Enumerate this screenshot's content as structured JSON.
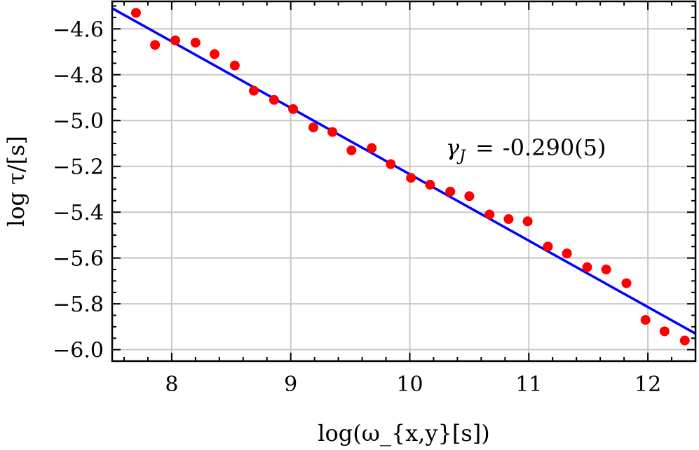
{
  "chart_data": {
    "type": "scatter",
    "xlabel": "log(ω_{x,y}[s])",
    "ylabel": "log τ/[s]",
    "xlim": [
      7.5,
      12.4
    ],
    "ylim": [
      -6.05,
      -4.48
    ],
    "grid": true,
    "x_ticks": [
      8,
      9,
      10,
      11,
      12
    ],
    "y_ticks": [
      -4.6,
      -4.8,
      -5.0,
      -5.2,
      -5.4,
      -5.6,
      -5.8,
      -6.0
    ],
    "x_tick_labels": [
      "8",
      "9",
      "10",
      "11",
      "12"
    ],
    "y_tick_labels": [
      "−4.6",
      "−4.8",
      "−5.0",
      "−5.2",
      "−5.4",
      "−5.6",
      "−5.8",
      "−6.0"
    ],
    "annotation": {
      "text": "-0.290(5)",
      "symbol": "γ",
      "subscript": "J",
      "equals": "="
    },
    "points": {
      "color": "#ff0000",
      "x": [
        7.7,
        7.86,
        8.03,
        8.2,
        8.36,
        8.53,
        8.69,
        8.86,
        9.02,
        9.19,
        9.35,
        9.51,
        9.68,
        9.84,
        10.01,
        10.17,
        10.34,
        10.5,
        10.67,
        10.83,
        10.99,
        11.16,
        11.32,
        11.49,
        11.65,
        11.82,
        11.98,
        12.14,
        12.31
      ],
      "y": [
        -4.53,
        -4.67,
        -4.65,
        -4.66,
        -4.71,
        -4.76,
        -4.87,
        -4.91,
        -4.95,
        -5.03,
        -5.05,
        -5.13,
        -5.12,
        -5.19,
        -5.25,
        -5.28,
        -5.31,
        -5.33,
        -5.41,
        -5.43,
        -5.44,
        -5.55,
        -5.58,
        -5.64,
        -5.65,
        -5.71,
        -5.87,
        -5.92,
        -5.96
      ]
    },
    "fit_line": {
      "color": "#0000ff",
      "slope": -0.29,
      "x": [
        7.5,
        12.4
      ],
      "y": [
        -4.51,
        -5.93
      ]
    }
  }
}
